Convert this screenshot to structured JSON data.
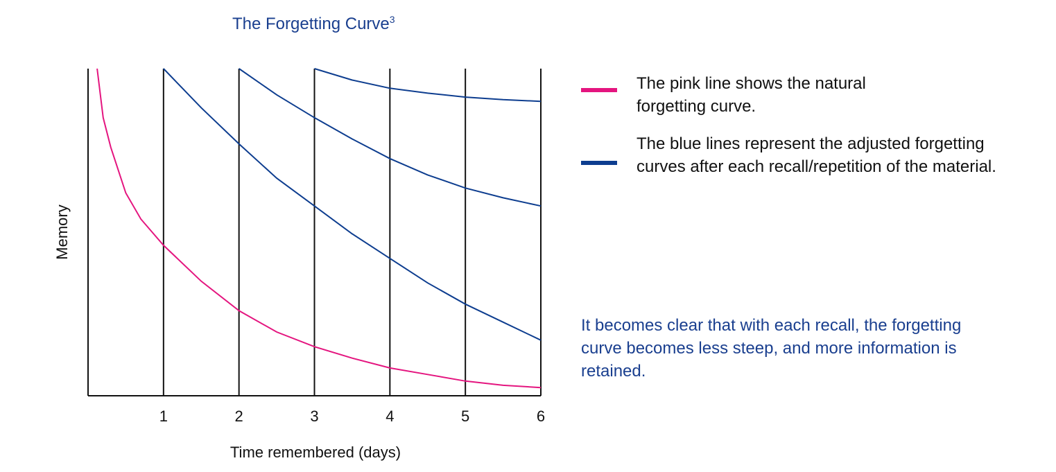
{
  "title": "The Forgetting Curve",
  "title_superscript": "3",
  "legend": [
    {
      "text": "The pink line shows the natural forgetting curve.",
      "color": "#e4157f"
    },
    {
      "text": "The blue lines represent the adjusted forgetting curves after each recall/repetition of the material.",
      "color": "#0d3d8f"
    }
  ],
  "note": "It becomes clear that with each recall, the forgetting curve becomes less steep, and more information is retained.",
  "chart_data": {
    "type": "line",
    "xlabel": "Time remembered (days)",
    "ylabel": "Memory",
    "xlim": [
      0,
      6
    ],
    "ylim": [
      0,
      100
    ],
    "x_ticks": [
      1,
      2,
      3,
      4,
      5,
      6
    ],
    "vertical_lines_at": [
      1,
      2,
      3,
      4,
      5,
      6
    ],
    "grid": false,
    "legend_position": "right",
    "series": [
      {
        "color": "#e4157f",
        "x": [
          0.12,
          0.2,
          0.3,
          0.5,
          0.7,
          1,
          1.5,
          2,
          2.5,
          3,
          3.5,
          4,
          4.5,
          5,
          5.5,
          6
        ],
        "y": [
          100,
          85,
          76,
          62,
          54,
          46,
          35,
          26,
          19.5,
          15,
          11.5,
          8.5,
          6.5,
          4.5,
          3.2,
          2.5
        ]
      },
      {
        "color": "#0d3d8f",
        "x": [
          1,
          1.5,
          2,
          2.5,
          3,
          3.5,
          4,
          4.5,
          5,
          5.5,
          6
        ],
        "y": [
          100,
          88,
          77,
          66.5,
          58,
          49.5,
          42,
          34.5,
          28,
          22.5,
          17
        ]
      },
      {
        "color": "#0d3d8f",
        "x": [
          2,
          2.5,
          3,
          3.5,
          4,
          4.5,
          5,
          5.5,
          6
        ],
        "y": [
          100,
          92,
          85,
          78.5,
          72.5,
          67.5,
          63.5,
          60.5,
          58
        ]
      },
      {
        "color": "#0d3d8f",
        "x": [
          3,
          3.5,
          4,
          4.5,
          5,
          5.5,
          6
        ],
        "y": [
          100,
          96.5,
          94,
          92.5,
          91.3,
          90.5,
          90
        ]
      }
    ]
  }
}
